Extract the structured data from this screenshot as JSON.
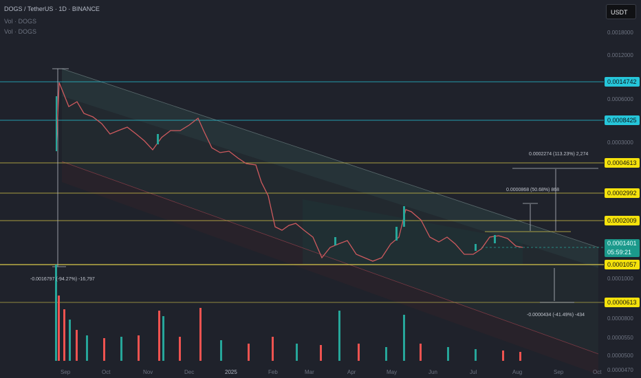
{
  "header": {
    "title": "DOGS / TetherUS · 1D · BINANCE",
    "vol1": "Vol · DOGS",
    "vol2": "Vol · DOGS"
  },
  "toolbar": {
    "unit_label": "USDT"
  },
  "price_scale": {
    "labels": [
      "0.0018000",
      "0.0012000",
      "0.0006000",
      "0.0003000",
      "0.0001000",
      "0.0000800",
      "0.0000550",
      "0.0000500",
      "0.0000470"
    ],
    "level_tags": [
      {
        "text": "0.0014742",
        "color": "cyan"
      },
      {
        "text": "0.0008425",
        "color": "cyan"
      },
      {
        "text": "0.0004613",
        "color": "yellow"
      },
      {
        "text": "0.0002992",
        "color": "yellow"
      },
      {
        "text": "0.0002009",
        "color": "yellow"
      },
      {
        "text": "0.0001057",
        "color": "yellow"
      },
      {
        "text": "0.0000613",
        "color": "yellow"
      }
    ],
    "current_price": "0.0001401",
    "countdown": "05:59:21"
  },
  "time_axis": [
    "Sep",
    "Oct",
    "Nov",
    "Dec",
    "2025",
    "Feb",
    "Mar",
    "Apr",
    "May",
    "Jun",
    "Jul",
    "Aug",
    "Sep",
    "Oct"
  ],
  "annotations": {
    "target1": "0.0002274 (113.23%) 2,274",
    "target2": "0.0000868 (50.68%) 868",
    "drop": "-0.0016797 (-94.27%) -16,797",
    "down": "-0.0000434 (-41.49%) -434"
  },
  "colors": {
    "background": "#1f222b",
    "up": "#26a69a",
    "down": "#ef5350",
    "cyan_line": "#26c6da",
    "yellow_line": "#d9c84a"
  }
}
